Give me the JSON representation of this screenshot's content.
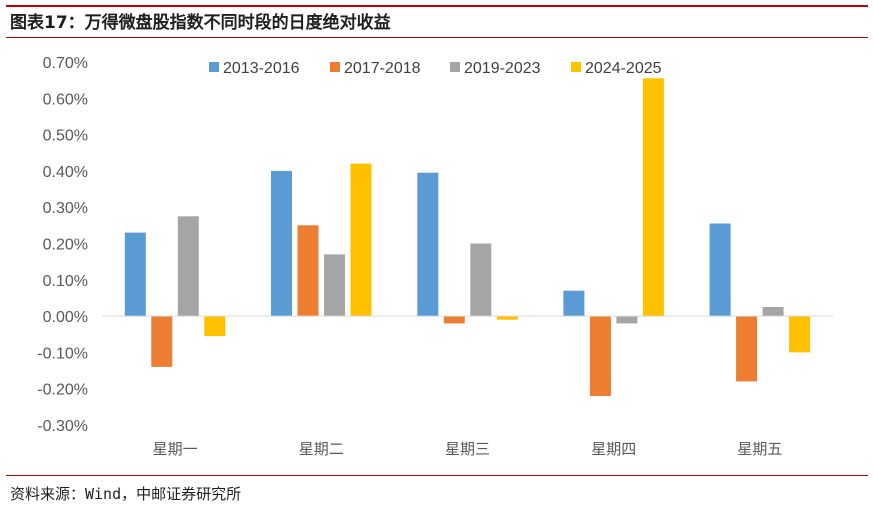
{
  "page": {
    "title": "图表17：万得微盘股指数不同时段的日度绝对收益",
    "source": "资料来源：Wind，中邮证券研究所"
  },
  "colors": {
    "rule": "#c00000",
    "series": [
      "#5b9bd5",
      "#ed7d31",
      "#a5a5a5",
      "#ffc000"
    ]
  },
  "chart_data": {
    "type": "bar",
    "title": "",
    "xlabel": "",
    "ylabel": "",
    "categories": [
      "星期一",
      "星期二",
      "星期三",
      "星期四",
      "星期五"
    ],
    "ylim": [
      -0.3,
      0.7
    ],
    "yticks": [
      "0.70%",
      "0.60%",
      "0.50%",
      "0.40%",
      "0.30%",
      "0.20%",
      "0.10%",
      "0.00%",
      "-0.10%",
      "-0.20%",
      "-0.30%"
    ],
    "grid": false,
    "legend": "top",
    "series": [
      {
        "name": "2013-2016",
        "values": [
          0.23,
          0.4,
          0.395,
          0.07,
          0.255
        ]
      },
      {
        "name": "2017-2018",
        "values": [
          -0.14,
          0.25,
          -0.02,
          -0.22,
          -0.18
        ]
      },
      {
        "name": "2019-2023",
        "values": [
          0.275,
          0.17,
          0.2,
          -0.02,
          0.025
        ]
      },
      {
        "name": "2024-2025",
        "values": [
          -0.055,
          0.42,
          -0.01,
          0.655,
          -0.1
        ]
      }
    ]
  }
}
